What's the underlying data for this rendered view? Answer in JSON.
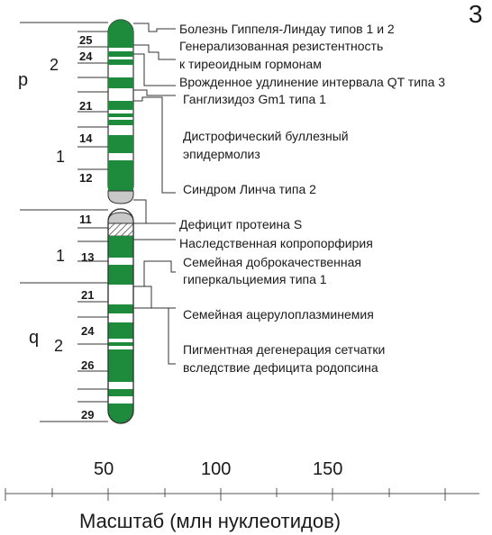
{
  "chromosome": {
    "number": "3",
    "arms": {
      "p": "p",
      "q": "q"
    },
    "regions": [
      "2",
      "1",
      "1",
      "2"
    ],
    "bands": [
      "25",
      "24",
      "21",
      "14",
      "12",
      "11",
      "13",
      "21",
      "24",
      "26",
      "29"
    ],
    "colors": {
      "band_dark": "#1e8a3c",
      "band_light": "#ffffff",
      "centromere": "#c8c8c8",
      "outline": "#333333"
    }
  },
  "diseases": [
    "Болезнь Гиппеля-Линдау типов 1 и 2",
    "Генерализованная резистентность",
    "к тиреоидным гормонам",
    "Врожденное удлинение интервала QT типа 3",
    "Ганглизидоз  Gm1 типа 1",
    "Дистрофический буллезный",
    "эпидермолиз",
    "Синдром Линча типа 2",
    "Дефицит протеина  S",
    "Наследственная копропорфирия",
    "Семейная доброкачественная",
    "гиперкальциемия типа 1",
    "Семейная ацерулоплазминемия",
    "Пигментная дегенерация сетчатки",
    "вследствие дефицита родопсина"
  ],
  "scale": {
    "ticks": [
      "50",
      "100",
      "150"
    ],
    "title": "Масштаб (млн  нуклеотидов)"
  }
}
